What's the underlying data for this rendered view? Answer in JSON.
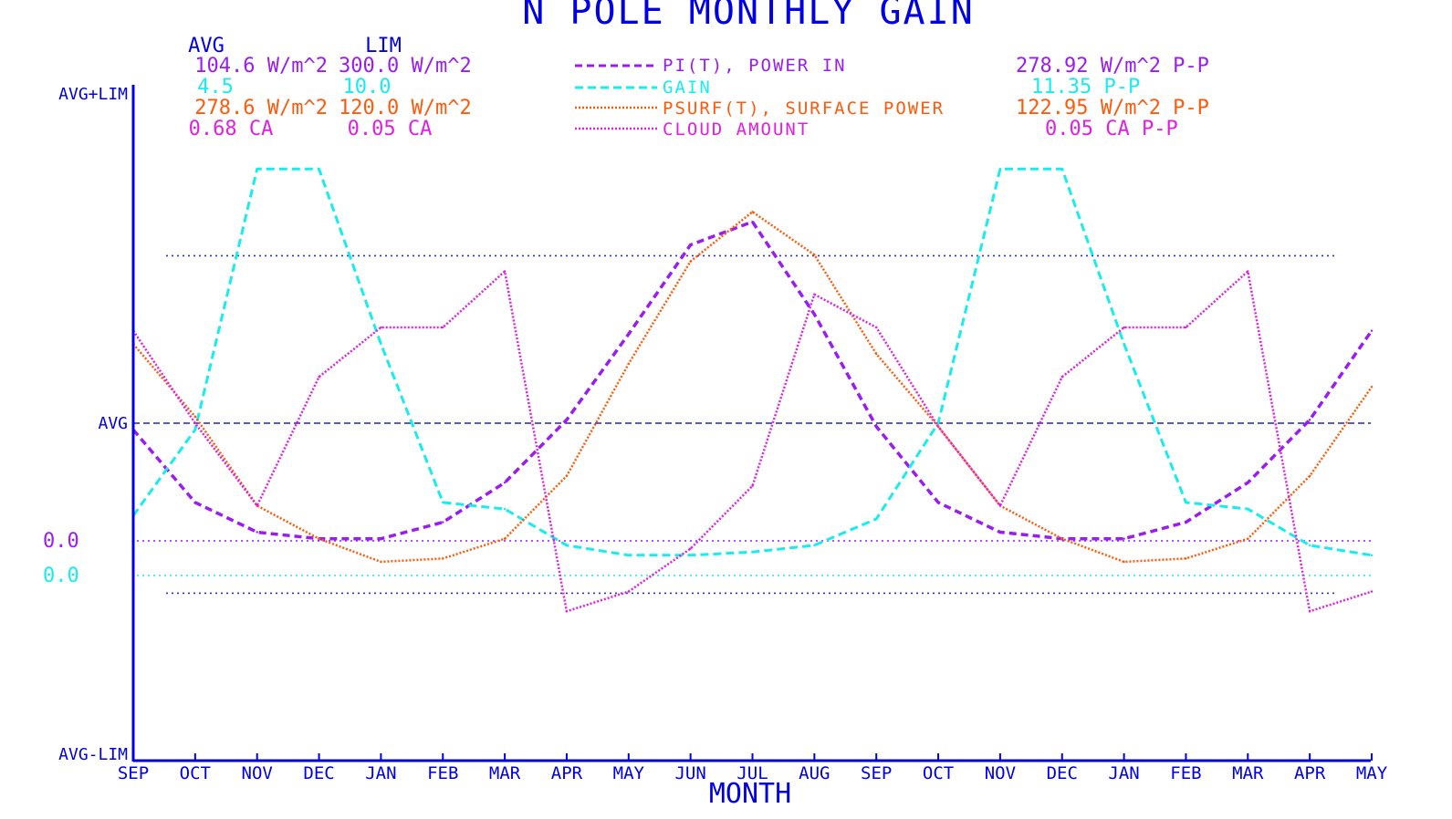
{
  "colors": {
    "axis": "#0000e0",
    "avg": "#2020d0",
    "pin": "#9a1cf0",
    "gain": "#18ecec",
    "psurf": "#ff5a0a",
    "cloud": "#e020e0",
    "ref": "#3030c0"
  },
  "chart_data": {
    "type": "line",
    "title": "N POLE MONTHLY GAIN",
    "xlabel": "MONTH",
    "ylabel_top": "AVG+LIM",
    "ylabel_mid": "AVG",
    "ylabel_bottom": "AVG-LIM",
    "zero_labels": [
      "0.0",
      "0.0"
    ],
    "categories": [
      "SEP",
      "OCT",
      "NOV",
      "DEC",
      "JAN",
      "FEB",
      "MAR",
      "APR",
      "MAY",
      "JUN",
      "JUL",
      "AUG",
      "SEP",
      "OCT",
      "NOV",
      "DEC",
      "JAN",
      "FEB",
      "MAR",
      "APR",
      "MAY"
    ],
    "ylim": [
      -1,
      1
    ],
    "y_units": "normalized: (value - AVG) / LIM",
    "reference_lines": [
      0.507,
      -0.515
    ],
    "stats_headers": [
      "AVG",
      "LIM"
    ],
    "stats": [
      {
        "avg": "104.6 W/m^2",
        "lim": "300.0 W/m^2",
        "pp": "278.92 W/m^2 P-P"
      },
      {
        "avg": "4.5",
        "lim": "10.0",
        "pp": "11.35  P-P"
      },
      {
        "avg": "278.6 W/m^2",
        "lim": "120.0 W/m^2",
        "pp": "122.95 W/m^2 P-P"
      },
      {
        "avg": "0.68 CA",
        "lim": "0.05 CA",
        "pp": "0.05 CA P-P"
      }
    ],
    "series": [
      {
        "name": "PI(T), POWER IN",
        "color_key": "pin",
        "dash": "8 5",
        "width": 3.5,
        "values": [
          -0.02,
          -0.24,
          -0.33,
          -0.35,
          -0.35,
          -0.3,
          -0.18,
          0.01,
          0.27,
          0.54,
          0.61,
          0.33,
          -0.01,
          -0.24,
          -0.33,
          -0.35,
          -0.35,
          -0.3,
          -0.18,
          0.01,
          0.28
        ]
      },
      {
        "name": "GAIN",
        "color_key": "gain",
        "dash": "9 5",
        "width": 3,
        "values": [
          -0.28,
          -0.02,
          0.77,
          0.77,
          0.24,
          -0.24,
          -0.26,
          -0.37,
          -0.4,
          -0.4,
          -0.39,
          -0.37,
          -0.29,
          0.0,
          0.77,
          0.77,
          0.24,
          -0.24,
          -0.26,
          -0.37,
          -0.4
        ]
      },
      {
        "name": "PSURF(T), SURFACE POWER",
        "color_key": "psurf",
        "dash": "2 2",
        "width": 2.5,
        "values": [
          0.24,
          0.02,
          -0.25,
          -0.35,
          -0.42,
          -0.41,
          -0.35,
          -0.16,
          0.18,
          0.49,
          0.64,
          0.51,
          0.21,
          -0.01,
          -0.25,
          -0.35,
          -0.42,
          -0.41,
          -0.35,
          -0.16,
          0.11
        ]
      },
      {
        "name": "CLOUD AMOUNT",
        "color_key": "cloud",
        "dash": "2 2",
        "width": 2.5,
        "values": [
          0.28,
          0.0,
          -0.25,
          0.14,
          0.29,
          0.29,
          0.46,
          -0.57,
          -0.51,
          -0.38,
          -0.19,
          0.39,
          0.29,
          -0.01,
          -0.25,
          0.14,
          0.29,
          0.29,
          0.46,
          -0.57,
          -0.51
        ]
      }
    ]
  }
}
